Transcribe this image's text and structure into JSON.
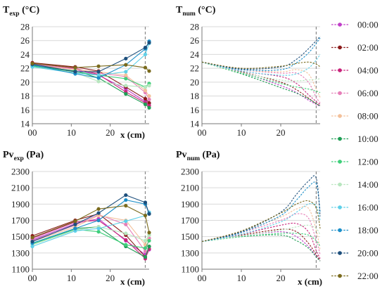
{
  "x_ticks": [
    "00",
    "10",
    "20"
  ],
  "x_axis_label": "x (cm)",
  "legend": [
    {
      "label": "00:00",
      "color": "#c03ec8"
    },
    {
      "label": "02:00",
      "color": "#8b1a1a"
    },
    {
      "label": "04:00",
      "color": "#c8237a"
    },
    {
      "label": "06:00",
      "color": "#e67fb8"
    },
    {
      "label": "08:00",
      "color": "#f3c09a"
    },
    {
      "label": "10:00",
      "color": "#1f9e55"
    },
    {
      "label": "12:00",
      "color": "#3fcf7a"
    },
    {
      "label": "14:00",
      "color": "#b8e6bf"
    },
    {
      "label": "16:00",
      "color": "#5fd0e8"
    },
    {
      "label": "18:00",
      "color": "#1c8fc9"
    },
    {
      "label": "20:00",
      "color": "#1d4f7c"
    },
    {
      "label": "22:00",
      "color": "#7a6a1c"
    }
  ],
  "chart_data": [
    {
      "type": "line",
      "title_main": "T",
      "title_sub": "exp",
      "title_unit": " (°C)",
      "xlabel": "x (cm)",
      "ylim": [
        14,
        28
      ],
      "y_ticks": [
        "14",
        "16",
        "18",
        "20",
        "22",
        "24",
        "26",
        "28"
      ],
      "xlim": [
        0,
        30
      ],
      "vline_x": 29,
      "x": [
        0,
        11,
        17,
        24,
        29,
        30
      ],
      "series": [
        {
          "name": "00:00",
          "values": [
            22.5,
            21.8,
            21.0,
            19.0,
            17.2,
            16.9
          ]
        },
        {
          "name": "02:00",
          "values": [
            22.8,
            22.2,
            21.6,
            19.3,
            17.6,
            17.0
          ]
        },
        {
          "name": "04:00",
          "values": [
            22.7,
            22.0,
            21.1,
            18.6,
            17.0,
            16.6
          ]
        },
        {
          "name": "06:00",
          "values": [
            22.6,
            21.9,
            21.3,
            20.8,
            18.5,
            17.5
          ]
        },
        {
          "name": "08:00",
          "values": [
            22.5,
            21.8,
            21.5,
            21.0,
            18.8,
            18.0
          ]
        },
        {
          "name": "10:00",
          "values": [
            22.4,
            21.6,
            20.6,
            18.3,
            16.8,
            16.3
          ]
        },
        {
          "name": "12:00",
          "values": [
            22.3,
            21.5,
            21.0,
            20.5,
            19.3,
            19.8
          ]
        },
        {
          "name": "14:00",
          "values": [
            22.2,
            21.4,
            20.1,
            19.5,
            19.3,
            19.5
          ]
        },
        {
          "name": "16:00",
          "values": [
            22.2,
            21.3,
            21.0,
            21.5,
            24.0,
            25.6
          ]
        },
        {
          "name": "18:00",
          "values": [
            22.5,
            21.2,
            20.6,
            22.5,
            24.8,
            25.9
          ]
        },
        {
          "name": "20:00",
          "values": [
            22.6,
            21.5,
            21.5,
            23.4,
            25.0,
            25.7
          ]
        },
        {
          "name": "22:00",
          "values": [
            22.7,
            22.1,
            22.3,
            22.5,
            22.1,
            21.6
          ]
        }
      ]
    },
    {
      "type": "line",
      "title_main": "T",
      "title_sub": "num",
      "title_unit": " (°C)",
      "xlabel": "",
      "ylim": [
        14,
        28
      ],
      "y_ticks": [
        "14",
        "16",
        "18",
        "20",
        "22",
        "24",
        "26",
        "28"
      ],
      "xlim": [
        0,
        30
      ],
      "vline_x": 29,
      "x": [
        0,
        10,
        20,
        24,
        27,
        29,
        30
      ],
      "series": [
        {
          "name": "00:00",
          "values": [
            22.9,
            21.4,
            19.5,
            18.5,
            17.4,
            16.8,
            16.5
          ]
        },
        {
          "name": "02:00",
          "values": [
            22.9,
            21.5,
            20.0,
            18.9,
            17.7,
            16.9,
            16.6
          ]
        },
        {
          "name": "04:00",
          "values": [
            22.9,
            21.6,
            20.8,
            19.8,
            18.2,
            17.2,
            16.8
          ]
        },
        {
          "name": "06:00",
          "values": [
            22.9,
            21.8,
            21.3,
            21.3,
            20.0,
            17.8,
            17.0
          ]
        },
        {
          "name": "08:00",
          "values": [
            22.9,
            21.8,
            21.5,
            21.8,
            21.2,
            19.0,
            17.8
          ]
        },
        {
          "name": "10:00",
          "values": [
            22.9,
            21.2,
            19.2,
            18.4,
            17.6,
            16.9,
            16.6
          ]
        },
        {
          "name": "12:00",
          "values": [
            22.9,
            21.3,
            19.8,
            19.3,
            19.0,
            18.7,
            18.5
          ]
        },
        {
          "name": "14:00",
          "values": [
            22.9,
            21.4,
            20.3,
            20.2,
            20.3,
            20.4,
            20.5
          ]
        },
        {
          "name": "16:00",
          "values": [
            22.9,
            21.6,
            21.0,
            21.2,
            22.0,
            23.2,
            24.0
          ]
        },
        {
          "name": "18:00",
          "values": [
            22.9,
            21.8,
            21.8,
            22.8,
            24.2,
            25.6,
            26.4
          ]
        },
        {
          "name": "20:00",
          "values": [
            22.9,
            21.9,
            22.2,
            23.3,
            24.8,
            26.0,
            26.6
          ]
        },
        {
          "name": "22:00",
          "values": [
            22.9,
            22.0,
            22.3,
            22.7,
            22.9,
            22.6,
            22.2
          ]
        }
      ]
    },
    {
      "type": "line",
      "title_main": "Pv",
      "title_sub": "exp",
      "title_unit": " (Pa)",
      "xlabel": "x (cm)",
      "ylim": [
        1100,
        2300
      ],
      "y_ticks": [
        "1100",
        "1300",
        "1500",
        "1700",
        "1900",
        "2100",
        "2300"
      ],
      "xlim": [
        0,
        30
      ],
      "vline_x": 29,
      "x": [
        0,
        11,
        17,
        24,
        29,
        30
      ],
      "series": [
        {
          "name": "00:00",
          "values": [
            1460,
            1660,
            1720,
            1450,
            1280,
            1340
          ]
        },
        {
          "name": "02:00",
          "values": [
            1510,
            1700,
            1780,
            1520,
            1250,
            1380
          ]
        },
        {
          "name": "04:00",
          "values": [
            1480,
            1680,
            1700,
            1460,
            1230,
            1350
          ]
        },
        {
          "name": "06:00",
          "values": [
            1450,
            1640,
            1770,
            1650,
            1320,
            1480
          ]
        },
        {
          "name": "08:00",
          "values": [
            1440,
            1620,
            1760,
            1700,
            1400,
            1520
          ]
        },
        {
          "name": "10:00",
          "values": [
            1420,
            1600,
            1620,
            1380,
            1250,
            1380
          ]
        },
        {
          "name": "12:00",
          "values": [
            1410,
            1590,
            1560,
            1400,
            1360,
            1450
          ]
        },
        {
          "name": "14:00",
          "values": [
            1400,
            1580,
            1620,
            1540,
            1450,
            1520
          ]
        },
        {
          "name": "16:00",
          "values": [
            1380,
            1570,
            1600,
            1690,
            1760,
            1800
          ]
        },
        {
          "name": "18:00",
          "values": [
            1420,
            1600,
            1700,
            1950,
            1900,
            1780
          ]
        },
        {
          "name": "20:00",
          "values": [
            1440,
            1650,
            1790,
            2010,
            1920,
            1780
          ]
        },
        {
          "name": "22:00",
          "values": [
            1490,
            1690,
            1840,
            1880,
            1760,
            1550
          ]
        }
      ]
    },
    {
      "type": "line",
      "title_main": "Pv",
      "title_sub": "num",
      "title_unit": " (Pa)",
      "xlabel": "x (cm)",
      "ylim": [
        1100,
        2300
      ],
      "y_ticks": [
        "1100",
        "1300",
        "1500",
        "1700",
        "1900",
        "2100",
        "2300"
      ],
      "xlim": [
        0,
        30
      ],
      "vline_x": 29,
      "x": [
        0,
        10,
        20,
        24,
        27,
        29,
        30
      ],
      "series": [
        {
          "name": "00:00",
          "values": [
            1440,
            1510,
            1560,
            1500,
            1380,
            1260,
            1200
          ]
        },
        {
          "name": "02:00",
          "values": [
            1440,
            1520,
            1590,
            1560,
            1420,
            1280,
            1210
          ]
        },
        {
          "name": "04:00",
          "values": [
            1440,
            1530,
            1640,
            1660,
            1560,
            1330,
            1230
          ]
        },
        {
          "name": "06:00",
          "values": [
            1440,
            1550,
            1700,
            1780,
            1730,
            1450,
            1280
          ]
        },
        {
          "name": "08:00",
          "values": [
            1440,
            1560,
            1740,
            1840,
            1850,
            1580,
            1330
          ]
        },
        {
          "name": "10:00",
          "values": [
            1440,
            1500,
            1520,
            1450,
            1360,
            1250,
            1200
          ]
        },
        {
          "name": "12:00",
          "values": [
            1440,
            1500,
            1540,
            1540,
            1520,
            1450,
            1380
          ]
        },
        {
          "name": "14:00",
          "values": [
            1440,
            1510,
            1580,
            1620,
            1640,
            1600,
            1520
          ]
        },
        {
          "name": "16:00",
          "values": [
            1440,
            1530,
            1680,
            1800,
            1900,
            1880,
            1700
          ]
        },
        {
          "name": "18:00",
          "values": [
            1440,
            1550,
            1760,
            1950,
            2110,
            2150,
            1800
          ]
        },
        {
          "name": "20:00",
          "values": [
            1440,
            1560,
            1800,
            2020,
            2180,
            2220,
            1750
          ]
        },
        {
          "name": "22:00",
          "values": [
            1440,
            1570,
            1790,
            1900,
            1940,
            1850,
            1600
          ]
        }
      ]
    }
  ]
}
